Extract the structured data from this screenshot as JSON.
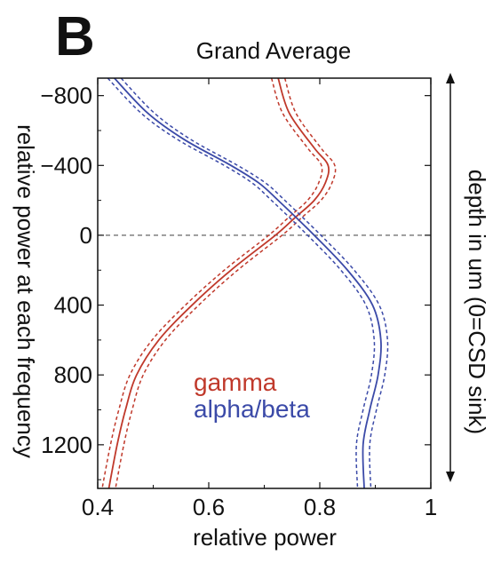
{
  "panel_label": "B",
  "chart_data": {
    "type": "line",
    "title": "Grand Average",
    "xlabel": "relative power",
    "ylabel": "relative power at each frequency",
    "right_label": "depth in um (0=CSD sink)",
    "xlim": [
      0.4,
      1.0
    ],
    "ylim": [
      -900,
      1450
    ],
    "y_inverted": true,
    "xticks": [
      0.4,
      0.6,
      0.8,
      1.0
    ],
    "xtick_labels": [
      "0.4",
      "0.6",
      "0.8",
      "1"
    ],
    "yticks": [
      -800,
      -400,
      0,
      400,
      800,
      1200
    ],
    "ytick_labels": [
      "−800",
      "−400",
      "0",
      "400",
      "800",
      "1200"
    ],
    "reference_line_y": 0,
    "legend_placement": "lower-center",
    "series": [
      {
        "name": "gamma",
        "color": "#c0392b",
        "error_band": 0.012,
        "depth": [
          -900,
          -700,
          -500,
          -400,
          -300,
          -200,
          -100,
          0,
          200,
          400,
          600,
          800,
          1000,
          1200,
          1450
        ],
        "value": [
          0.725,
          0.745,
          0.79,
          0.815,
          0.81,
          0.79,
          0.755,
          0.72,
          0.64,
          0.57,
          0.51,
          0.47,
          0.45,
          0.435,
          0.42
        ]
      },
      {
        "name": "alpha/beta",
        "color": "#3b4aa8",
        "error_band": 0.012,
        "depth": [
          -900,
          -700,
          -550,
          -400,
          -300,
          -200,
          0,
          200,
          400,
          600,
          800,
          1000,
          1200,
          1450
        ],
        "value": [
          0.43,
          0.49,
          0.555,
          0.64,
          0.69,
          0.725,
          0.79,
          0.85,
          0.895,
          0.91,
          0.905,
          0.89,
          0.878,
          0.88
        ]
      }
    ]
  }
}
